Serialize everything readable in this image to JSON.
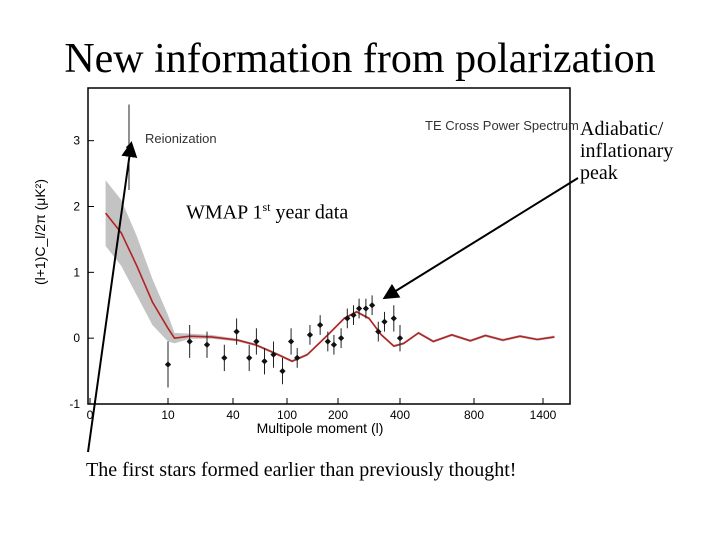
{
  "slide": {
    "title": "New information from polarization",
    "callout_wmap_main": "WMAP 1",
    "callout_wmap_sup": "st",
    "callout_wmap_tail": " year data",
    "callout_peak": "Adiabatic/ inflationary peak",
    "callout_stars": "The first stars formed earlier than previously thought!"
  },
  "chart_data": {
    "type": "scatter",
    "title": "TE Cross Power Spectrum",
    "annotation": "Reionization",
    "xlabel": "Multipole moment (l)",
    "ylabel": "(l+1)C_l/2π (μK²)",
    "ylim": [
      -1,
      3.8
    ],
    "yticks": [
      -1,
      0,
      1,
      2,
      3
    ],
    "xticks": [
      "0",
      "10",
      "40",
      "100",
      "200",
      "400",
      "800",
      "1400"
    ],
    "x_scale": "piecewise (compressed at high l)",
    "grid": false,
    "series": [
      {
        "kind": "data_points",
        "points": [
          {
            "l": 5,
            "y": 2.9,
            "err": 0.65
          },
          {
            "l": 10,
            "y": -0.4,
            "err": 0.35
          },
          {
            "l": 20,
            "y": -0.05,
            "err": 0.25
          },
          {
            "l": 28,
            "y": -0.1,
            "err": 0.2
          },
          {
            "l": 36,
            "y": -0.3,
            "err": 0.2
          },
          {
            "l": 44,
            "y": 0.1,
            "err": 0.2
          },
          {
            "l": 58,
            "y": -0.3,
            "err": 0.2
          },
          {
            "l": 66,
            "y": -0.05,
            "err": 0.2
          },
          {
            "l": 75,
            "y": -0.35,
            "err": 0.2
          },
          {
            "l": 85,
            "y": -0.25,
            "err": 0.2
          },
          {
            "l": 95,
            "y": -0.5,
            "err": 0.2
          },
          {
            "l": 108,
            "y": -0.05,
            "err": 0.2
          },
          {
            "l": 120,
            "y": -0.3,
            "err": 0.15
          },
          {
            "l": 145,
            "y": 0.05,
            "err": 0.15
          },
          {
            "l": 165,
            "y": 0.2,
            "err": 0.15
          },
          {
            "l": 180,
            "y": -0.05,
            "err": 0.15
          },
          {
            "l": 192,
            "y": -0.1,
            "err": 0.15
          },
          {
            "l": 210,
            "y": 0.0,
            "err": 0.15
          },
          {
            "l": 230,
            "y": 0.3,
            "err": 0.15
          },
          {
            "l": 250,
            "y": 0.35,
            "err": 0.15
          },
          {
            "l": 268,
            "y": 0.45,
            "err": 0.15
          },
          {
            "l": 290,
            "y": 0.45,
            "err": 0.15
          },
          {
            "l": 310,
            "y": 0.5,
            "err": 0.15
          },
          {
            "l": 330,
            "y": 0.1,
            "err": 0.15
          },
          {
            "l": 350,
            "y": 0.25,
            "err": 0.15
          },
          {
            "l": 380,
            "y": 0.3,
            "err": 0.2
          },
          {
            "l": 400,
            "y": 0.0,
            "err": 0.2
          }
        ]
      },
      {
        "kind": "model_curve",
        "color": "#b22222",
        "band_color": "#bdbdbd",
        "points": [
          {
            "l": 2,
            "y": 1.9,
            "band": 0.5
          },
          {
            "l": 4,
            "y": 1.6,
            "band": 0.5
          },
          {
            "l": 6,
            "y": 1.1,
            "band": 0.45
          },
          {
            "l": 8,
            "y": 0.55,
            "band": 0.35
          },
          {
            "l": 10,
            "y": 0.15,
            "band": 0.2
          },
          {
            "l": 13,
            "y": 0.0,
            "band": 0.08
          },
          {
            "l": 20,
            "y": 0.03,
            "band": 0.04
          },
          {
            "l": 30,
            "y": 0.02,
            "band": 0.03
          },
          {
            "l": 45,
            "y": -0.03,
            "band": 0.02
          },
          {
            "l": 65,
            "y": -0.1,
            "band": 0.02
          },
          {
            "l": 90,
            "y": -0.25,
            "band": 0.02
          },
          {
            "l": 110,
            "y": -0.35,
            "band": 0.02
          },
          {
            "l": 140,
            "y": -0.25,
            "band": 0.02
          },
          {
            "l": 180,
            "y": 0.05,
            "band": 0.02
          },
          {
            "l": 220,
            "y": 0.3,
            "band": 0.02
          },
          {
            "l": 260,
            "y": 0.4,
            "band": 0.02
          },
          {
            "l": 300,
            "y": 0.3,
            "band": 0.02
          },
          {
            "l": 340,
            "y": 0.05,
            "band": 0.02
          },
          {
            "l": 380,
            "y": -0.12,
            "band": 0.02
          },
          {
            "l": 420,
            "y": -0.08,
            "band": 0.02
          },
          {
            "l": 500,
            "y": 0.08,
            "band": 0.02
          },
          {
            "l": 580,
            "y": -0.05,
            "band": 0.02
          },
          {
            "l": 680,
            "y": 0.05,
            "band": 0.02
          },
          {
            "l": 780,
            "y": -0.04,
            "band": 0.02
          },
          {
            "l": 900,
            "y": 0.04,
            "band": 0.02
          },
          {
            "l": 1050,
            "y": -0.03,
            "band": 0.02
          },
          {
            "l": 1200,
            "y": 0.03,
            "band": 0.02
          },
          {
            "l": 1350,
            "y": -0.02,
            "band": 0.02
          },
          {
            "l": 1500,
            "y": 0.02,
            "band": 0.02
          }
        ]
      }
    ]
  }
}
